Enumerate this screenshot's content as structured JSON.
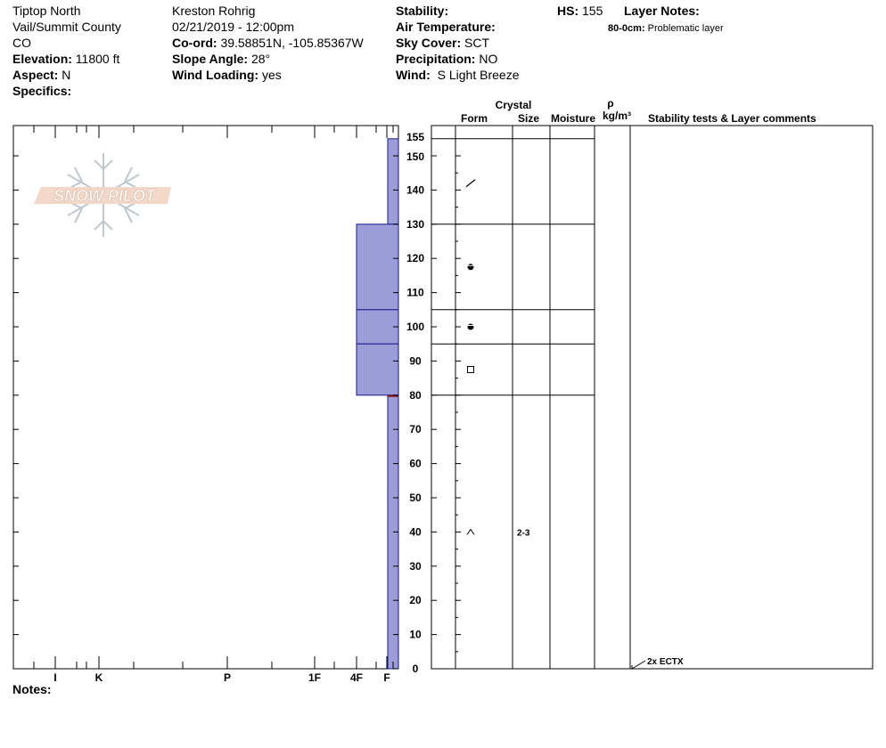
{
  "header": {
    "location": "Tiptop North",
    "region": "Vail/Summit County",
    "state": "CO",
    "elevation_label": "Elevation:",
    "elevation_value": "11800 ft",
    "aspect_label": "Aspect:",
    "aspect_value": "N",
    "specifics_label": "Specifics:",
    "observer": "Kreston Rohrig",
    "datetime": "02/21/2019 - 12:00pm",
    "coord_label": "Co-ord:",
    "coord_value": "39.58851N, -105.85367W",
    "slope_label": "Slope Angle:",
    "slope_value": "28°",
    "wind_loading_label": "Wind Loading:",
    "wind_loading_value": "yes",
    "stability_label": "Stability:",
    "air_temp_label": "Air Temperature:",
    "sky_label": "Sky Cover:",
    "sky_value": "SCT",
    "precip_label": "Precipitation:",
    "precip_value": "NO",
    "wind_label": "Wind:",
    "wind_value": "S Light Breeze",
    "hs_label": "HS:",
    "hs_value": "155",
    "layer_notes_label": "Layer Notes:",
    "layer_note_depth": "80-0cm:",
    "layer_note_text": "Problematic layer",
    "notes_label": "Notes:"
  },
  "logo_text": "SNOW PILOT",
  "columns": {
    "crystal": "Crystal",
    "form": "Form",
    "size": "Size",
    "moisture": "Moisture",
    "rho": "ρ",
    "density_unit": "kg/m³",
    "stability_tests": "Stability tests & Layer comments"
  },
  "chart_data": {
    "type": "bar",
    "title": "",
    "xlabel": "",
    "ylabel": "",
    "ylim": [
      0,
      155
    ],
    "hardness_ticks": [
      "I",
      "K",
      "P",
      "1F",
      "4F",
      "F"
    ],
    "depth_ticks": [
      0,
      10,
      20,
      30,
      40,
      50,
      60,
      70,
      80,
      90,
      100,
      110,
      120,
      130,
      140,
      150,
      155
    ],
    "layers": [
      {
        "top": 155,
        "bottom": 130,
        "hardness": "F"
      },
      {
        "top": 130,
        "bottom": 105,
        "hardness": "4F"
      },
      {
        "top": 105,
        "bottom": 95,
        "hardness": "4F"
      },
      {
        "top": 95,
        "bottom": 80,
        "hardness": "4F"
      },
      {
        "top": 80,
        "bottom": 0,
        "hardness": "F"
      }
    ],
    "layer_boundaries": [
      155,
      130,
      105,
      95,
      80
    ],
    "grain_forms": [
      {
        "depth": 142,
        "form": "decomposing-fragments"
      },
      {
        "depth": 117.5,
        "form": "rounded-faceted"
      },
      {
        "depth": 100,
        "form": "rounded-faceted"
      },
      {
        "depth": 87.5,
        "form": "faceted"
      },
      {
        "depth": 40,
        "form": "depth-hoar",
        "size": "2-3"
      }
    ],
    "tests": [
      {
        "depth": 0,
        "label": "2x ECTX"
      }
    ],
    "fill_color": "#9c9cd9",
    "weak_layer_color": "#8b1a1a"
  }
}
